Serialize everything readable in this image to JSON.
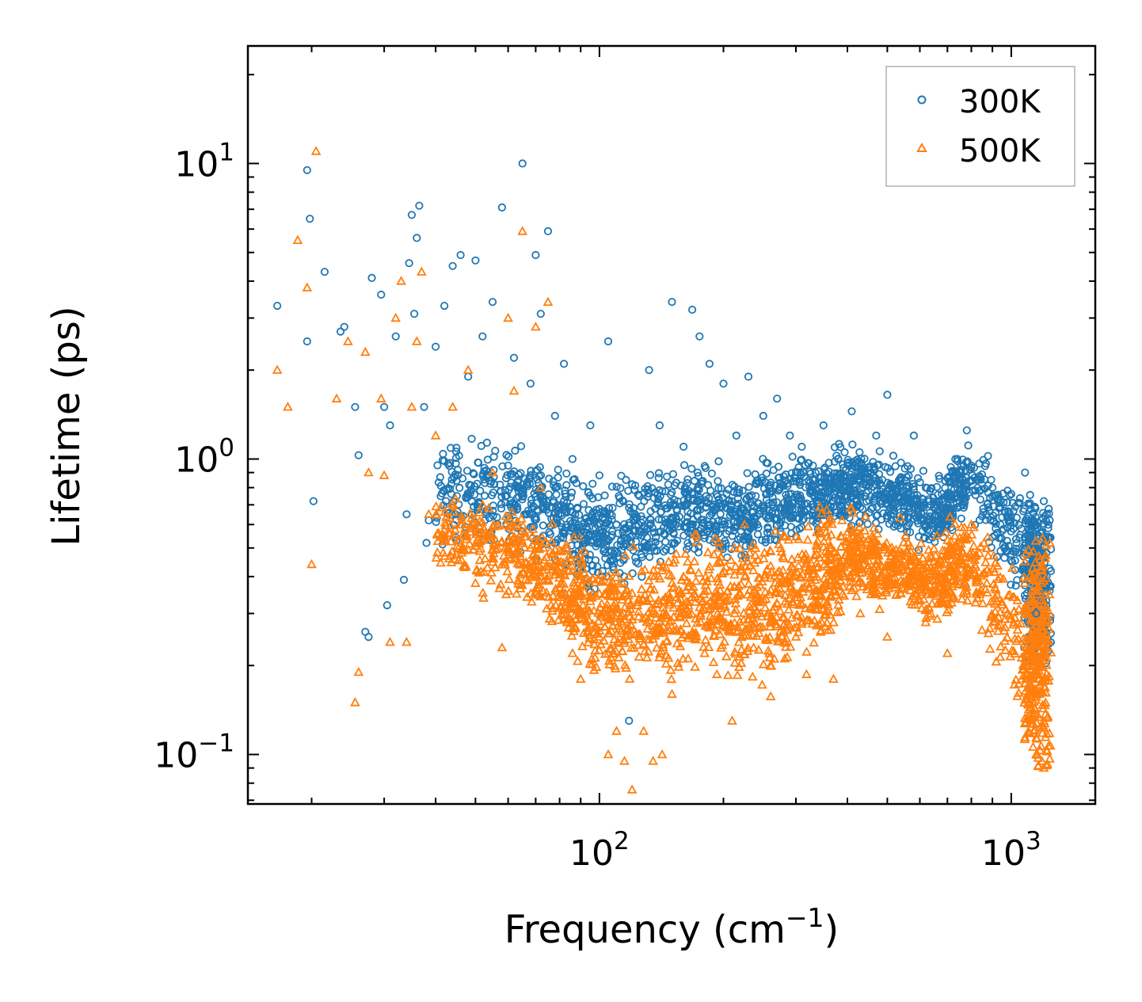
{
  "chart_data": {
    "type": "scatter",
    "title": "",
    "xlabel": "Frequency (cm",
    "xlabel_sup": "−1",
    "xlabel_end": ")",
    "ylabel": "Lifetime (ps)",
    "xscale": "log",
    "yscale": "log",
    "xlim": [
      14,
      1600
    ],
    "ylim": [
      0.068,
      25
    ],
    "x_ticks": [
      {
        "value": 100,
        "base": "10",
        "exp": "2"
      },
      {
        "value": 1000,
        "base": "10",
        "exp": "3"
      }
    ],
    "y_ticks": [
      {
        "value": 0.1,
        "base": "10",
        "exp": "−1"
      },
      {
        "value": 1,
        "base": "10",
        "exp": "0"
      },
      {
        "value": 10,
        "base": "10",
        "exp": "1"
      }
    ],
    "legend_position": "top-right",
    "series": [
      {
        "name": "300K",
        "marker": "circle",
        "color": "#1f77b4",
        "x": [
          16.5,
          19.5,
          19.5,
          19.8,
          20.2,
          21.5,
          23.5,
          24.0,
          25.5,
          26.0,
          27.0,
          27.5,
          28.0,
          29.5,
          30.0,
          30.5,
          31.0,
          32.0,
          33.5,
          34.0,
          34.5,
          35.0,
          35.5,
          36.0,
          36.5,
          37.5,
          38.0,
          38.5,
          40.0,
          42.0,
          44.0,
          46.0,
          48.0,
          50.0,
          52.0,
          55.0,
          58.0,
          60.0,
          62.0,
          65.0,
          68.0,
          70.0,
          72.0,
          75.0,
          78.0,
          82.0,
          86.0,
          90.0,
          95.0,
          100.0,
          105.0,
          110.0,
          118.0,
          125.0,
          132.0,
          140.0,
          150.0,
          160.0,
          168.0,
          175.0,
          185.0,
          200.0,
          215.0,
          230.0,
          250.0,
          270.0,
          290.0,
          310.0,
          330.0,
          350.0,
          380.0,
          410.0,
          440.0,
          470.0,
          500.0,
          540.0,
          580.0,
          620.0,
          660.0,
          700.0,
          740.0,
          780.0,
          800.0,
          1080.0,
          1100.0,
          1150.0,
          1200.0,
          1240.0
        ],
        "y": [
          3.3,
          2.5,
          9.5,
          6.5,
          0.72,
          4.3,
          2.7,
          2.8,
          1.5,
          1.03,
          0.26,
          0.25,
          4.1,
          3.6,
          1.5,
          0.32,
          1.3,
          2.6,
          0.39,
          0.65,
          4.6,
          6.7,
          3.1,
          5.6,
          7.2,
          1.5,
          0.52,
          0.62,
          2.4,
          3.3,
          4.5,
          4.9,
          1.9,
          4.7,
          2.6,
          3.4,
          7.1,
          0.95,
          2.2,
          10.0,
          1.8,
          4.9,
          3.1,
          5.9,
          1.4,
          2.1,
          1.0,
          0.55,
          1.3,
          0.88,
          2.5,
          0.6,
          0.13,
          0.75,
          2.0,
          1.3,
          3.4,
          1.1,
          3.2,
          2.6,
          2.1,
          1.8,
          1.2,
          1.9,
          1.4,
          1.6,
          1.2,
          1.1,
          0.95,
          1.3,
          1.0,
          1.45,
          0.9,
          1.2,
          1.65,
          0.85,
          1.2,
          0.8,
          0.7,
          0.6,
          1.0,
          1.25,
          0.95,
          0.9,
          0.55,
          0.3,
          0.72,
          0.62
        ]
      },
      {
        "name": "500K",
        "marker": "triangle",
        "color": "#ff7f0e",
        "x": [
          16.5,
          17.5,
          18.5,
          19.5,
          20.0,
          20.5,
          23.0,
          24.5,
          25.5,
          26.0,
          27.0,
          27.5,
          29.5,
          30.0,
          31.0,
          32.0,
          33.0,
          34.0,
          35.0,
          36.0,
          37.0,
          38.5,
          40.0,
          42.0,
          44.0,
          46.0,
          48.0,
          50.0,
          52.0,
          55.0,
          58.0,
          60.0,
          62.0,
          65.0,
          68.0,
          70.0,
          72.0,
          75.0,
          78.0,
          82.0,
          86.0,
          90.0,
          95.0,
          100.0,
          105.0,
          110.0,
          115.0,
          120.0,
          128.0,
          135.0,
          142.0,
          150.0,
          160.0,
          170.0,
          180.0,
          195.0,
          210.0,
          225.0,
          240.0,
          260.0,
          280.0,
          300.0,
          320.0,
          345.0,
          370.0,
          400.0,
          430.0,
          460.0,
          500.0,
          540.0,
          580.0,
          620.0,
          660.0,
          700.0,
          740.0,
          780.0,
          800.0,
          1080.0,
          1100.0,
          1150.0,
          1200.0,
          1240.0
        ],
        "y": [
          2.0,
          1.5,
          5.5,
          3.8,
          0.44,
          11.0,
          1.6,
          2.5,
          0.15,
          0.19,
          2.3,
          0.9,
          1.6,
          0.88,
          0.24,
          3.0,
          4.0,
          0.24,
          1.5,
          2.5,
          4.3,
          0.65,
          1.2,
          0.55,
          1.5,
          0.6,
          2.0,
          0.38,
          0.7,
          0.9,
          0.23,
          3.0,
          1.7,
          5.9,
          0.5,
          2.8,
          0.8,
          3.4,
          0.45,
          0.3,
          0.22,
          0.18,
          0.33,
          0.25,
          0.1,
          0.12,
          0.095,
          0.076,
          0.12,
          0.095,
          0.1,
          0.16,
          0.3,
          0.45,
          0.22,
          0.5,
          0.13,
          0.6,
          0.35,
          0.2,
          0.55,
          0.25,
          0.4,
          0.6,
          0.18,
          0.45,
          0.3,
          0.55,
          0.25,
          0.35,
          0.4,
          0.28,
          0.55,
          0.22,
          0.45,
          0.35,
          0.6,
          0.45,
          0.2,
          0.1,
          0.09,
          0.3
        ]
      }
    ],
    "density_bands": [
      {
        "series": "300K",
        "segments": [
          [
            40,
            1.0,
            0.45,
            1.3
          ],
          [
            60,
            0.8,
            0.45,
            1.3
          ],
          [
            80,
            0.7,
            0.4,
            1.1
          ],
          [
            100,
            0.55,
            0.3,
            0.9
          ],
          [
            130,
            0.7,
            0.35,
            1.0
          ],
          [
            170,
            0.8,
            0.4,
            1.1
          ],
          [
            220,
            0.8,
            0.4,
            1.0
          ],
          [
            280,
            0.85,
            0.45,
            1.15
          ],
          [
            350,
            0.9,
            0.5,
            1.2
          ],
          [
            420,
            0.95,
            0.55,
            1.25
          ],
          [
            520,
            0.85,
            0.5,
            1.1
          ],
          [
            650,
            0.75,
            0.45,
            0.95
          ],
          [
            780,
            0.9,
            0.6,
            1.2
          ],
          [
            1100,
            0.6,
            0.25,
            0.9
          ],
          [
            1220,
            0.55,
            0.2,
            0.7
          ]
        ]
      },
      {
        "series": "500K",
        "segments": [
          [
            40,
            0.6,
            0.35,
            0.9
          ],
          [
            60,
            0.55,
            0.3,
            0.8
          ],
          [
            80,
            0.4,
            0.22,
            0.65
          ],
          [
            100,
            0.3,
            0.15,
            0.55
          ],
          [
            130,
            0.3,
            0.15,
            0.55
          ],
          [
            170,
            0.35,
            0.18,
            0.6
          ],
          [
            220,
            0.4,
            0.15,
            0.65
          ],
          [
            280,
            0.4,
            0.15,
            0.7
          ],
          [
            350,
            0.45,
            0.2,
            0.75
          ],
          [
            420,
            0.5,
            0.3,
            0.75
          ],
          [
            520,
            0.45,
            0.28,
            0.65
          ],
          [
            650,
            0.4,
            0.25,
            0.6
          ],
          [
            780,
            0.5,
            0.3,
            0.7
          ],
          [
            1100,
            0.3,
            0.1,
            0.55
          ],
          [
            1220,
            0.25,
            0.09,
            0.55
          ]
        ]
      }
    ]
  }
}
